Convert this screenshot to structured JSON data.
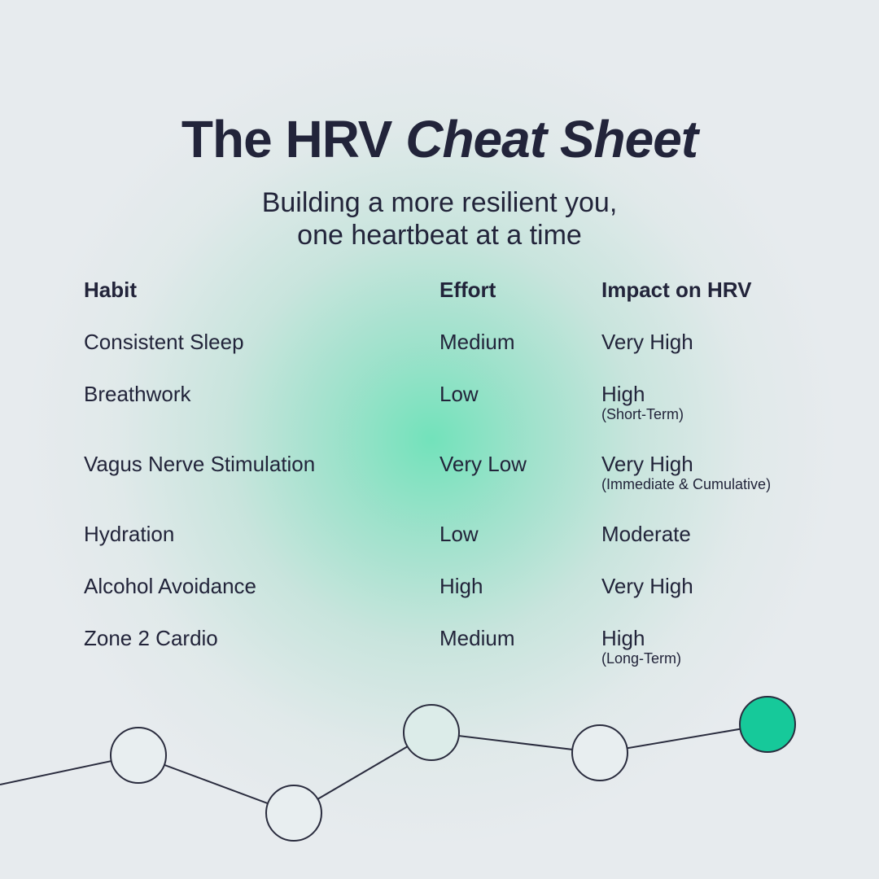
{
  "title_main": "The HRV",
  "title_emph": "Cheat Sheet",
  "subtitle_line1": "Building a more resilient you,",
  "subtitle_line2": "one heartbeat at a time",
  "headers": {
    "habit": "Habit",
    "effort": "Effort",
    "impact": "Impact on HRV"
  },
  "rows": [
    {
      "habit": "Consistent Sleep",
      "effort": "Medium",
      "impact": "Very High",
      "note": ""
    },
    {
      "habit": "Breathwork",
      "effort": "Low",
      "impact": "High",
      "note": "(Short-Term)"
    },
    {
      "habit": "Vagus Nerve Stimulation",
      "effort": "Very Low",
      "impact": "Very High",
      "note": "(Immediate & Cumulative)"
    },
    {
      "habit": "Hydration",
      "effort": "Low",
      "impact": "Moderate",
      "note": ""
    },
    {
      "habit": "Alcohol Avoidance",
      "effort": "High",
      "impact": "Very High",
      "note": ""
    },
    {
      "habit": "Zone 2 Cardio",
      "effort": "Medium",
      "impact": "High",
      "note": "(Long-Term)"
    }
  ],
  "colors": {
    "text": "#22243a",
    "accent": "#16c99a",
    "node_fill": "#e6eef0",
    "line": "#2a2c3e"
  }
}
